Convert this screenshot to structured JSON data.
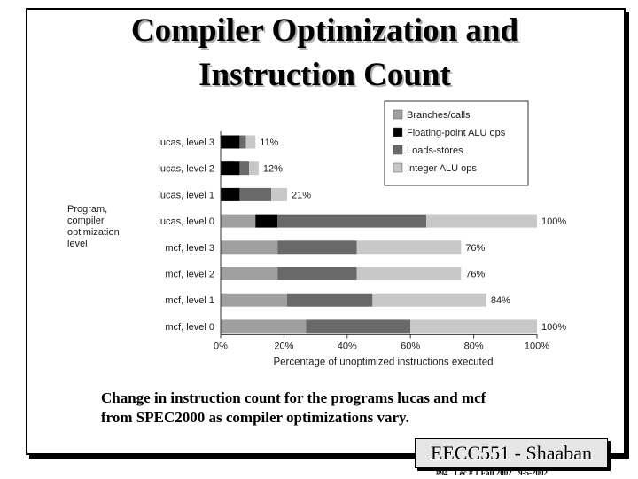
{
  "slide": {
    "title_line1": "Compiler Optimization and",
    "title_line2": "Instruction Count",
    "caption_line1": "Change in instruction count for the programs lucas and mcf",
    "caption_line2": "from SPEC2000 as compiler optimizations vary.",
    "brand": "EECC551 - Shaaban",
    "footer": {
      "slide_no": "#94",
      "lecture": "Lec # 1 Fall 2002",
      "date": "9-5-2002"
    }
  },
  "chart_data": {
    "type": "bar",
    "orientation": "horizontal",
    "stacked": true,
    "title": "",
    "xlabel": "Percentage of unoptimized instructions executed",
    "ylabel_lines": [
      "Program,",
      "compiler",
      "optimization",
      "level"
    ],
    "xlim": [
      0,
      100
    ],
    "x_ticks": [
      "0%",
      "20%",
      "40%",
      "60%",
      "80%",
      "100%"
    ],
    "grid": false,
    "legend_position": "top-right",
    "categories": [
      "lucas, level 3",
      "lucas, level 2",
      "lucas, level 1",
      "lucas, level 0",
      "mcf, level 3",
      "mcf, level 2",
      "mcf, level 1",
      "mcf, level 0"
    ],
    "series": [
      {
        "name": "Branches/calls",
        "color": "#a0a0a0",
        "values": [
          0,
          0,
          0,
          11,
          18,
          18,
          21,
          27
        ]
      },
      {
        "name": "Floating-point ALU ops",
        "color": "#000000",
        "values": [
          6,
          6,
          6,
          7,
          0,
          0,
          0,
          0
        ]
      },
      {
        "name": "Loads-stores",
        "color": "#696969",
        "values": [
          2,
          3,
          10,
          47,
          25,
          25,
          27,
          33
        ]
      },
      {
        "name": "Integer ALU ops",
        "color": "#c8c8c8",
        "values": [
          3,
          3,
          5,
          35,
          33,
          33,
          36,
          40
        ]
      }
    ],
    "totals": [
      "11%",
      "12%",
      "21%",
      "100%",
      "76%",
      "76%",
      "84%",
      "100%"
    ]
  }
}
